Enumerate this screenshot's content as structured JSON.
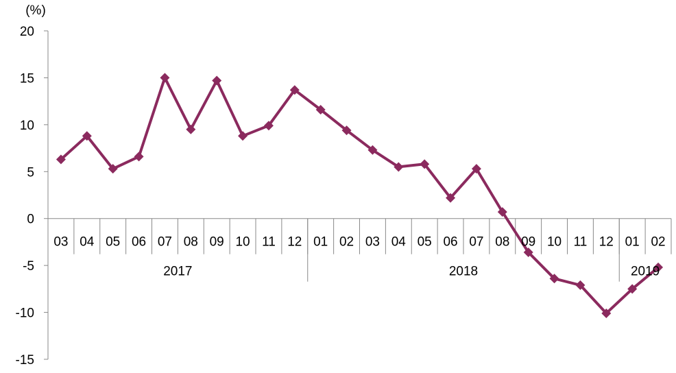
{
  "chart_data": {
    "type": "line",
    "unit_label": "(%)",
    "ylim": [
      -15,
      20
    ],
    "y_ticks": [
      20,
      15,
      10,
      5,
      0,
      -5,
      -10,
      -15
    ],
    "y_tick_labels": [
      "20",
      "15",
      "10",
      "5",
      "0",
      "-5",
      "-10",
      "-15"
    ],
    "categories": [
      "03",
      "04",
      "05",
      "06",
      "07",
      "08",
      "09",
      "10",
      "11",
      "12",
      "01",
      "02",
      "03",
      "04",
      "05",
      "06",
      "07",
      "08",
      "09",
      "10",
      "11",
      "12",
      "01",
      "02"
    ],
    "year_groups": [
      {
        "label": "2017",
        "count": 10
      },
      {
        "label": "2018",
        "count": 12
      },
      {
        "label": "2019",
        "count": 2
      }
    ],
    "series": [
      {
        "values": [
          6.3,
          8.8,
          5.3,
          6.6,
          15.0,
          9.5,
          14.7,
          8.8,
          9.9,
          13.7,
          11.6,
          9.4,
          7.3,
          5.5,
          5.8,
          2.2,
          5.3,
          0.7,
          -3.6,
          -6.4,
          -7.1,
          -10.1,
          -7.5,
          -5.2
        ],
        "color": "#8b2a5e"
      }
    ]
  }
}
